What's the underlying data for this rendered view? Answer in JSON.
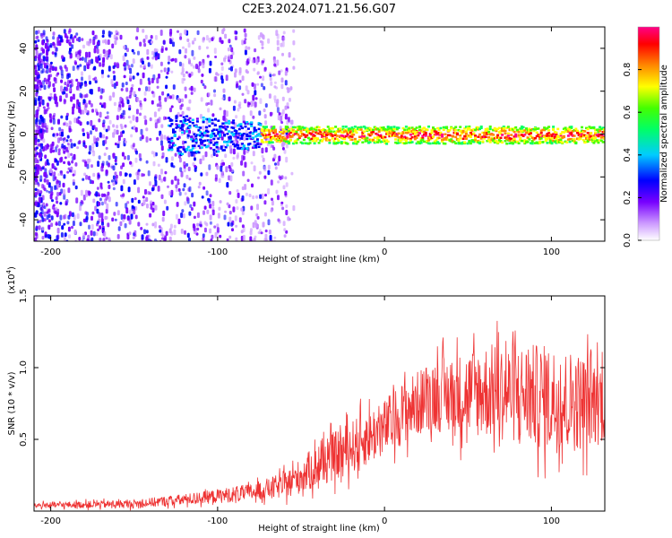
{
  "title": "C2E3.2024.071.21.56.G07",
  "chart_data": [
    {
      "type": "heatmap",
      "name": "spectrogram",
      "xlabel": "Height of straight line (km)",
      "ylabel": "Frequency (Hz)",
      "xlim": [
        -210,
        132
      ],
      "ylim": [
        -50,
        50
      ],
      "xticks": [
        -200,
        -100,
        0,
        100
      ],
      "xtick_labels": [
        "-200",
        "-100",
        "0",
        "100"
      ],
      "yticks": [
        40,
        20,
        0,
        -20,
        -40
      ],
      "ytick_labels": [
        "40",
        "20",
        "0",
        "-20",
        "-40"
      ],
      "signal_band": {
        "center_hz": 0,
        "start_km": -130,
        "end_km": 132,
        "strong_from_km": -75
      },
      "noise_region_km": [
        -210,
        -60
      ],
      "colorbar": {
        "label": "Normalized spectral amplitude",
        "range": [
          0.0,
          1.0
        ],
        "ticks": [
          0.0,
          0.2,
          0.4,
          0.6,
          0.8
        ],
        "tick_labels": [
          "0.0",
          "0.2",
          "0.4",
          "0.6",
          "0.8"
        ],
        "colors": [
          "#ffffff",
          "#8800ff",
          "#0000ff",
          "#00ffff",
          "#00ff00",
          "#ffff00",
          "#ff8800",
          "#ff0000",
          "#ff0088"
        ]
      }
    },
    {
      "type": "line",
      "name": "snr",
      "xlabel": "Height of straight line (km)",
      "ylabel": "SNR (10 * v/v)",
      "y_multiplier": "(x10",
      "y_multiplier_exp": "4",
      "y_multiplier_close": ")",
      "xlim": [
        -210,
        132
      ],
      "ylim": [
        0,
        1.5
      ],
      "xticks": [
        -200,
        -100,
        0,
        100
      ],
      "xtick_labels": [
        "-200",
        "-100",
        "0",
        "100"
      ],
      "yticks": [
        0.5,
        1.0,
        1.5
      ],
      "ytick_labels": [
        "0.5",
        "1.0",
        "1.5"
      ],
      "color": "#ee3333",
      "envelope": {
        "x": [
          -210,
          -150,
          -120,
          -80,
          -60,
          -45,
          -30,
          -15,
          0,
          10,
          20,
          30,
          40,
          60,
          80,
          100,
          120,
          132
        ],
        "mean": [
          0.04,
          0.05,
          0.08,
          0.13,
          0.18,
          0.28,
          0.38,
          0.48,
          0.58,
          0.68,
          0.75,
          0.82,
          0.8,
          0.84,
          0.82,
          0.78,
          0.76,
          0.78
        ],
        "spread": [
          0.02,
          0.03,
          0.04,
          0.06,
          0.09,
          0.14,
          0.17,
          0.19,
          0.2,
          0.22,
          0.23,
          0.26,
          0.28,
          0.33,
          0.35,
          0.38,
          0.34,
          0.3
        ]
      },
      "n_points": 1300
    }
  ]
}
